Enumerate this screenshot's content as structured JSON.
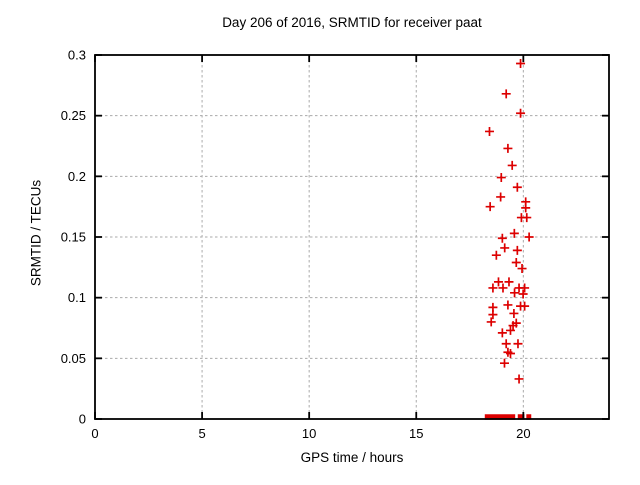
{
  "chart_data": {
    "type": "scatter",
    "title": "Day 206 of 2016, SRMTID for receiver paat",
    "xlabel": "GPS time / hours",
    "ylabel": "SRMTID / TECUs",
    "xlim": [
      0,
      24
    ],
    "ylim": [
      0,
      0.3
    ],
    "xticks": [
      0,
      5,
      10,
      15,
      20
    ],
    "xtick_labels": [
      "0",
      "5",
      "10",
      "15",
      "20"
    ],
    "yticks": [
      0,
      0.05,
      0.1,
      0.15,
      0.2,
      0.25,
      0.3
    ],
    "ytick_labels": [
      "0",
      "0.05",
      "0.1",
      "0.15",
      "0.2",
      "0.25",
      "0.3"
    ],
    "grid": true,
    "legend": "none",
    "marker": "plus",
    "colors": {
      "points": "#dd0000",
      "grid": "#aaaaaa",
      "axis": "#000000",
      "background": "#ffffff"
    },
    "points": [
      [
        19.87,
        0.293
      ],
      [
        19.2,
        0.268
      ],
      [
        19.87,
        0.252
      ],
      [
        18.42,
        0.237
      ],
      [
        19.28,
        0.223
      ],
      [
        19.48,
        0.209
      ],
      [
        18.97,
        0.199
      ],
      [
        19.72,
        0.191
      ],
      [
        18.94,
        0.183
      ],
      [
        20.11,
        0.179
      ],
      [
        18.45,
        0.175
      ],
      [
        20.11,
        0.174
      ],
      [
        19.91,
        0.166
      ],
      [
        20.16,
        0.166
      ],
      [
        19.58,
        0.153
      ],
      [
        20.27,
        0.15
      ],
      [
        19.02,
        0.149
      ],
      [
        19.13,
        0.141
      ],
      [
        19.72,
        0.139
      ],
      [
        18.74,
        0.135
      ],
      [
        19.67,
        0.129
      ],
      [
        19.94,
        0.124
      ],
      [
        18.84,
        0.113
      ],
      [
        19.33,
        0.113
      ],
      [
        18.58,
        0.108
      ],
      [
        19.05,
        0.108
      ],
      [
        19.8,
        0.108
      ],
      [
        20.06,
        0.108
      ],
      [
        19.59,
        0.104
      ],
      [
        19.99,
        0.103
      ],
      [
        19.28,
        0.094
      ],
      [
        19.87,
        0.093
      ],
      [
        20.06,
        0.093
      ],
      [
        18.58,
        0.092
      ],
      [
        19.56,
        0.087
      ],
      [
        18.58,
        0.086
      ],
      [
        18.5,
        0.08
      ],
      [
        19.67,
        0.079
      ],
      [
        19.52,
        0.077
      ],
      [
        19.4,
        0.073
      ],
      [
        19.02,
        0.071
      ],
      [
        19.2,
        0.062
      ],
      [
        19.75,
        0.062
      ],
      [
        19.28,
        0.055
      ],
      [
        19.4,
        0.054
      ],
      [
        19.12,
        0.046
      ],
      [
        19.8,
        0.033
      ]
    ],
    "baseline_runs_y0": [
      [
        18.2,
        19.62
      ],
      [
        19.74,
        20.05
      ],
      [
        20.14,
        20.37
      ]
    ]
  }
}
